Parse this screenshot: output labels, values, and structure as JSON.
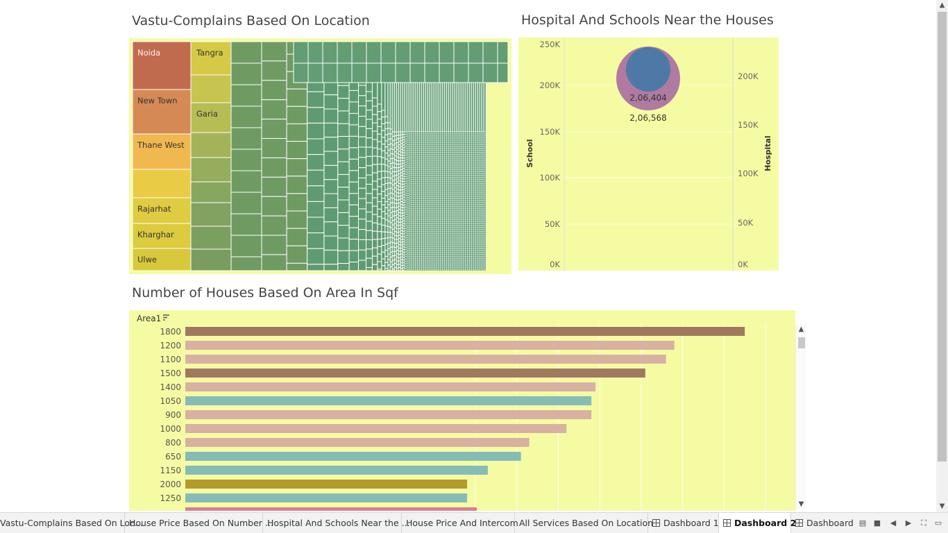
{
  "treemap": {
    "title": "Vastu-Complains Based On Location",
    "labels": [
      "Noida",
      "New Town",
      "Thane West",
      "Rajarhat",
      "Kharghar",
      "Ulwe",
      "Tangra",
      "Garia"
    ]
  },
  "bubble": {
    "title": "Hospital And Schools Near the Houses",
    "left_axis_title": "School",
    "right_axis_title": "Hospital",
    "left_ticks": [
      "250K",
      "200K",
      "150K",
      "100K",
      "50K",
      "0K"
    ],
    "right_ticks": [
      "200K",
      "150K",
      "100K",
      "50K",
      "0K"
    ],
    "inner_label": "2,06,404",
    "outer_label": "2,06,568",
    "inner_color": "#4e79a7",
    "outer_color": "#b07aa1"
  },
  "bars": {
    "title": "Number of Houses Based On Area In Sqf",
    "header": "Area1"
  },
  "chart_data": [
    {
      "type": "bar",
      "orientation": "horizontal",
      "categories": [
        "1800",
        "1200",
        "1100",
        "1500",
        "1400",
        "1050",
        "900",
        "1000",
        "800",
        "650",
        "1150",
        "2000",
        "1250"
      ],
      "values": [
        135,
        118,
        116,
        111,
        99,
        98,
        98,
        92,
        83,
        81,
        73,
        68,
        68
      ],
      "colors": [
        "#a07860",
        "#d7b1a2",
        "#d7b1a2",
        "#a07860",
        "#d7b1a2",
        "#86bcb6",
        "#d7b1a2",
        "#d7b1a2",
        "#d7b1a2",
        "#86bcb6",
        "#86bcb6",
        "#b6992d",
        "#86bcb6"
      ],
      "title": "Number of Houses Based On Area In Sqf",
      "ylabel": "Area1",
      "xlim": [
        0,
        140
      ],
      "grid": true
    },
    {
      "type": "scatter",
      "title": "Hospital And Schools Near the Houses",
      "series": [
        {
          "name": "School",
          "values": [
            206568
          ]
        },
        {
          "name": "Hospital",
          "values": [
            206404
          ]
        }
      ],
      "labels": [
        "2,06,568",
        "2,06,404"
      ],
      "ylim_left": [
        0,
        250000
      ],
      "ylim_right": [
        0,
        230000
      ]
    },
    {
      "type": "heatmap",
      "title": "Vastu-Complains Based On Location",
      "categories": [
        "Noida",
        "New Town",
        "Thane West",
        "",
        "Rajarhat",
        "Kharghar",
        "Ulwe",
        "Tangra",
        "",
        "Garia"
      ]
    }
  ],
  "tabs": [
    {
      "label": "Vastu-Complains Based On Loc..."
    },
    {
      "label": "House Price Based On Number ..."
    },
    {
      "label": "Hospital And Schools Near the ..."
    },
    {
      "label": "House Price And Intercom"
    },
    {
      "label": "All Services Based On Location"
    },
    {
      "label": "Dashboard 1"
    },
    {
      "label": "Dashboard 2"
    },
    {
      "label": "Dashboard"
    }
  ]
}
